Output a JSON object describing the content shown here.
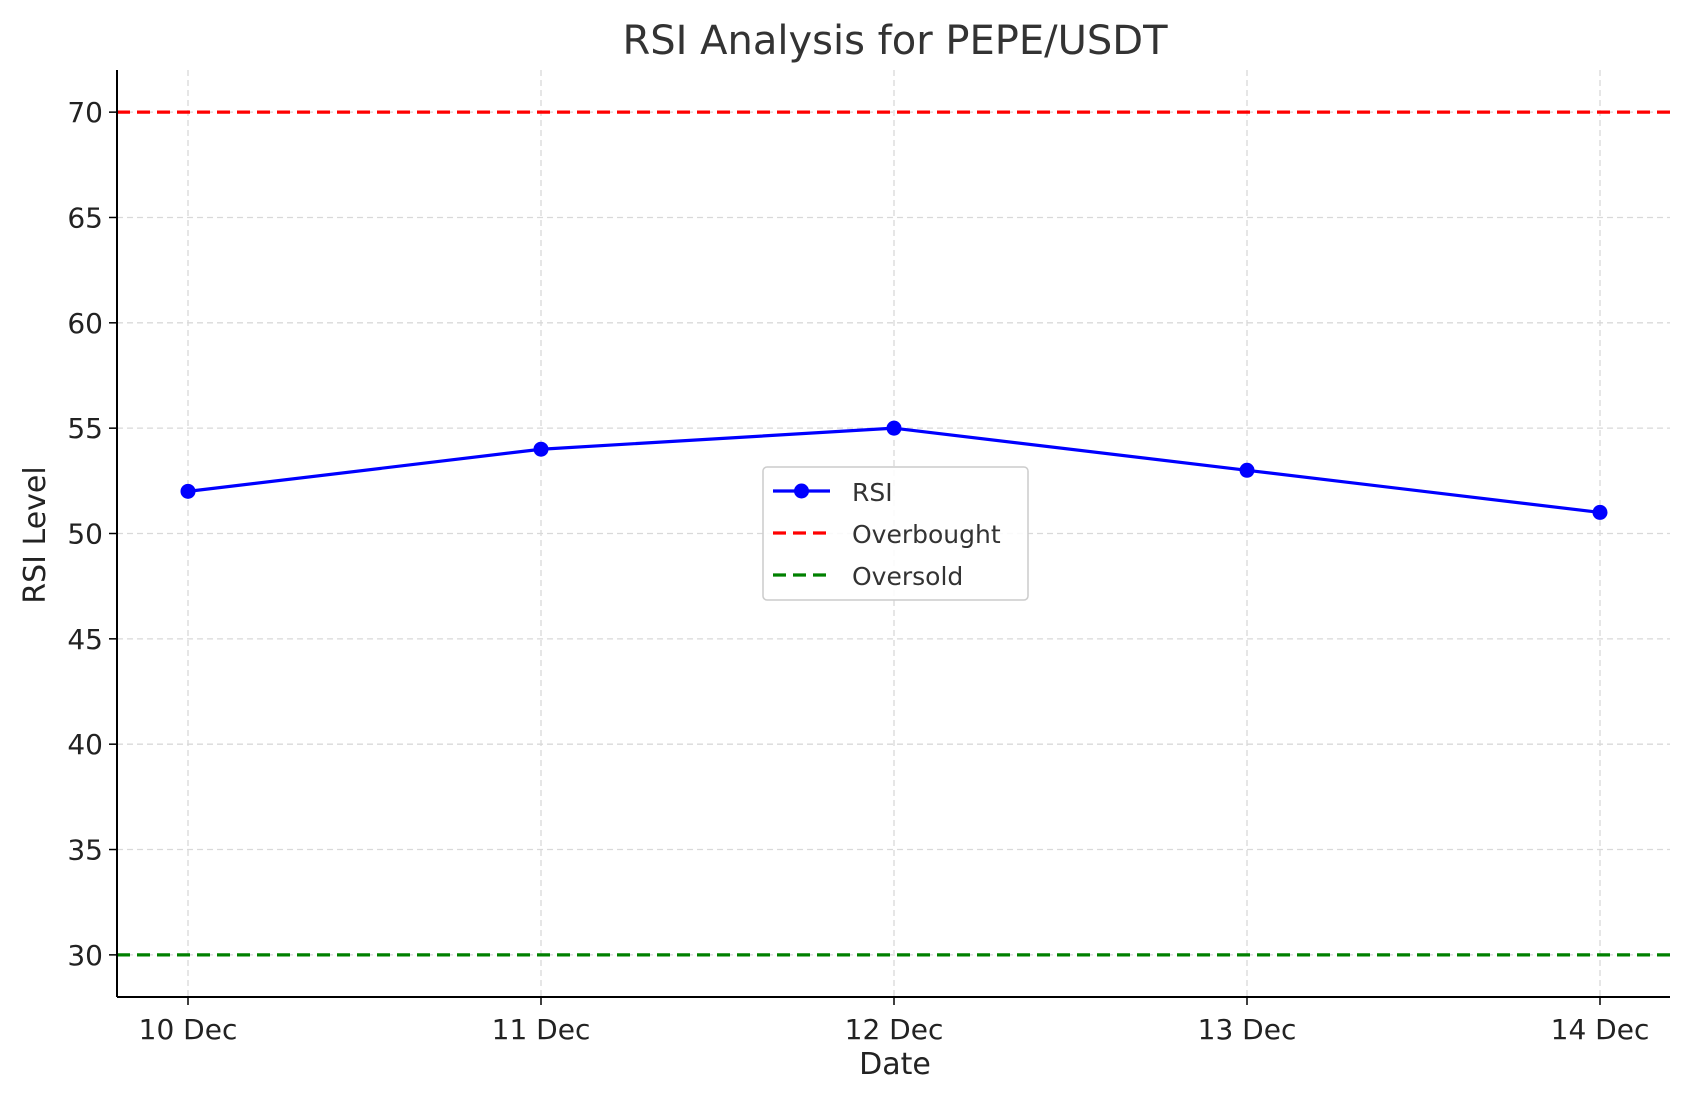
{
  "chart_data": {
    "type": "line",
    "title": "RSI Analysis for PEPE/USDT",
    "xlabel": "Date",
    "ylabel": "RSI Level",
    "categories": [
      "10 Dec",
      "11 Dec",
      "12 Dec",
      "13 Dec",
      "14 Dec"
    ],
    "series": [
      {
        "name": "RSI",
        "values": [
          52,
          54,
          55,
          53,
          51
        ],
        "color": "#0000ff",
        "style": "solid",
        "marker": "circle"
      }
    ],
    "reference_lines": [
      {
        "name": "Overbought",
        "y": 70,
        "color": "#ff0000",
        "style": "dashed"
      },
      {
        "name": "Oversold",
        "y": 30,
        "color": "#008000",
        "style": "dashed"
      }
    ],
    "yticks": [
      30,
      35,
      40,
      45,
      50,
      55,
      60,
      65,
      70
    ],
    "ylim": [
      28,
      72
    ],
    "grid": true,
    "legend_position": "center",
    "legend": [
      "RSI",
      "Overbought",
      "Oversold"
    ],
    "text_color": "#333333",
    "grid_color": "#d9d9d9"
  }
}
